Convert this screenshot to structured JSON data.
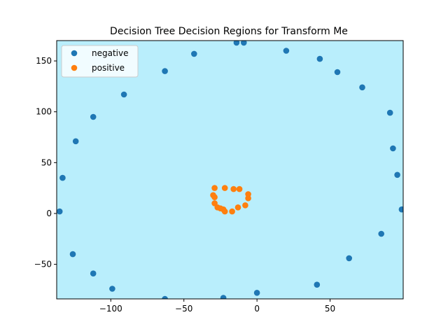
{
  "chart_data": {
    "type": "scatter",
    "title": "Decision Tree Decision Regions for Transform Me",
    "xlabel": "",
    "ylabel": "",
    "xlim": [
      -137,
      100
    ],
    "ylim": [
      -84,
      170
    ],
    "xticks": [
      -100,
      -50,
      0,
      50
    ],
    "yticks": [
      -50,
      0,
      50,
      100,
      150
    ],
    "background_region_color": "#b9eefc",
    "grid": false,
    "legend_position": "top-left",
    "series": [
      {
        "name": "negative",
        "color": "#1f77b4",
        "points": [
          [
            -135,
            2
          ],
          [
            -133,
            35
          ],
          [
            -124,
            71
          ],
          [
            -126,
            -40
          ],
          [
            -112,
            95
          ],
          [
            -112,
            -59
          ],
          [
            -99,
            -74
          ],
          [
            -91,
            117
          ],
          [
            -63,
            140
          ],
          [
            -63,
            -84
          ],
          [
            -43,
            157
          ],
          [
            -23,
            -83
          ],
          [
            -14,
            168
          ],
          [
            -9,
            168
          ],
          [
            0,
            -78
          ],
          [
            20,
            160
          ],
          [
            41,
            -70
          ],
          [
            43,
            152
          ],
          [
            55,
            139
          ],
          [
            63,
            -44
          ],
          [
            72,
            124
          ],
          [
            85,
            -20
          ],
          [
            91,
            99
          ],
          [
            93,
            64
          ],
          [
            96,
            38
          ],
          [
            99,
            4
          ]
        ]
      },
      {
        "name": "positive",
        "color": "#ff7f0e",
        "points": [
          [
            -30,
            18
          ],
          [
            -29,
            25
          ],
          [
            -29,
            16
          ],
          [
            -29,
            10
          ],
          [
            -27,
            6
          ],
          [
            -25,
            5
          ],
          [
            -23,
            4
          ],
          [
            -22,
            2
          ],
          [
            -22,
            25
          ],
          [
            -17,
            2
          ],
          [
            -16,
            24
          ],
          [
            -13,
            6
          ],
          [
            -12,
            24
          ],
          [
            -8,
            8
          ],
          [
            -6,
            15
          ],
          [
            -6,
            19
          ]
        ]
      }
    ]
  }
}
